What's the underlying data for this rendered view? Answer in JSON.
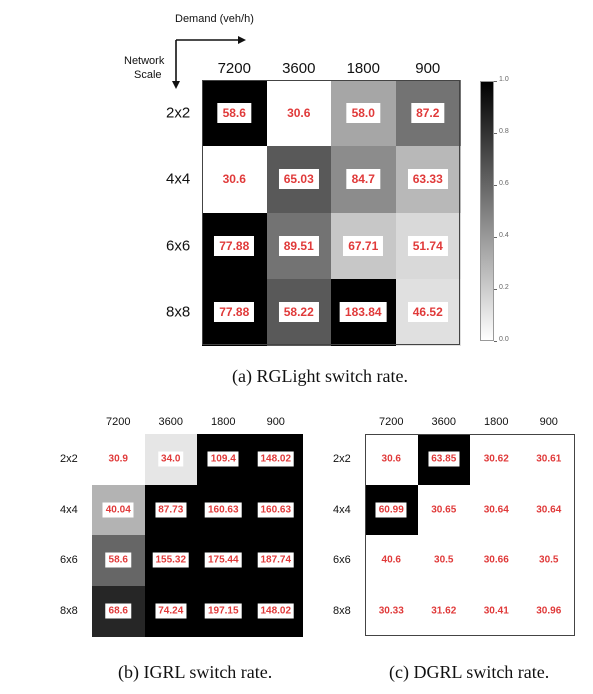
{
  "chart_data": [
    {
      "type": "heatmap",
      "title": "",
      "xlabel": "Demand (veh/h)",
      "ylabel": "Network Scale",
      "xlabel_lines": [
        "Demand (veh/h)"
      ],
      "ylabel_lines": [
        "Network",
        "Scale"
      ],
      "columns": [
        "7200",
        "3600",
        "1800",
        "900"
      ],
      "rows": [
        "2x2",
        "4x4",
        "6x6",
        "8x8"
      ],
      "labels": [
        [
          "58.6",
          "30.6",
          "58.0",
          "87.2"
        ],
        [
          "30.6",
          "65.03",
          "84.7",
          "63.33"
        ],
        [
          "77.88",
          "89.51",
          "67.71",
          "51.74"
        ],
        [
          "77.88",
          "58.22",
          "183.84",
          "46.52"
        ]
      ],
      "shade": [
        [
          1.0,
          0.0,
          0.35,
          0.55
        ],
        [
          0.0,
          0.65,
          0.45,
          0.28
        ],
        [
          1.0,
          0.55,
          0.22,
          0.15
        ],
        [
          1.0,
          0.65,
          1.0,
          0.12
        ]
      ],
      "colorbar": {
        "range": [
          0.0,
          1.0
        ],
        "ticks": [
          "1.0",
          "0.8",
          "0.6",
          "0.4",
          "0.2",
          "0.0"
        ]
      },
      "caption": "(a) RGLight switch rate."
    },
    {
      "type": "heatmap",
      "columns": [
        "7200",
        "3600",
        "1800",
        "900"
      ],
      "rows": [
        "2x2",
        "4x4",
        "6x6",
        "8x8"
      ],
      "labels": [
        [
          "30.9",
          "34.0",
          "109.4",
          "148.02"
        ],
        [
          "40.04",
          "87.73",
          "160.63",
          "160.63"
        ],
        [
          "58.6",
          "155.32",
          "175.44",
          "187.74"
        ],
        [
          "68.6",
          "74.24",
          "197.15",
          "148.02"
        ]
      ],
      "shade": [
        [
          0.0,
          0.1,
          1.0,
          1.0
        ],
        [
          0.3,
          1.0,
          1.0,
          1.0
        ],
        [
          0.6,
          1.0,
          1.0,
          1.0
        ],
        [
          0.85,
          1.0,
          1.0,
          1.0
        ]
      ],
      "caption": "(b) IGRL switch rate."
    },
    {
      "type": "heatmap",
      "columns": [
        "7200",
        "3600",
        "1800",
        "900"
      ],
      "rows": [
        "2x2",
        "4x4",
        "6x6",
        "8x8"
      ],
      "labels": [
        [
          "30.6",
          "63.85",
          "30.62",
          "30.61"
        ],
        [
          "60.99",
          "30.65",
          "30.64",
          "30.64"
        ],
        [
          "40.6",
          "30.5",
          "30.66",
          "30.5"
        ],
        [
          "30.33",
          "31.62",
          "30.41",
          "30.96"
        ]
      ],
      "shade": [
        [
          0.0,
          1.0,
          0.0,
          0.0
        ],
        [
          1.0,
          0.0,
          0.0,
          0.0
        ],
        [
          0.0,
          0.0,
          0.0,
          0.0
        ],
        [
          0.0,
          0.0,
          0.0,
          0.0
        ]
      ],
      "caption": "(c) DGRL switch rate."
    }
  ]
}
